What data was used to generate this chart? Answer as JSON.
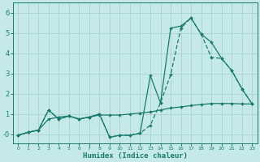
{
  "xlabel": "Humidex (Indice chaleur)",
  "background_color": "#c5e8e8",
  "grid_color": "#afd4d4",
  "line_color": "#1a7a6e",
  "xlim": [
    -0.5,
    23.5
  ],
  "ylim": [
    -0.45,
    6.5
  ],
  "xticks": [
    0,
    1,
    2,
    3,
    4,
    5,
    6,
    7,
    8,
    9,
    10,
    11,
    12,
    13,
    14,
    15,
    16,
    17,
    18,
    19,
    20,
    21,
    22,
    23
  ],
  "yticks": [
    0,
    1,
    2,
    3,
    4,
    5,
    6
  ],
  "ytick_labels": [
    "-0",
    "1",
    "2",
    "3",
    "4",
    "5",
    "6"
  ],
  "series1_x": [
    0,
    1,
    2,
    3,
    4,
    5,
    6,
    7,
    8,
    9,
    10,
    11,
    12,
    13,
    14,
    15,
    16,
    17,
    18,
    19,
    20,
    21,
    22,
    23
  ],
  "series1_y": [
    -0.05,
    0.1,
    0.2,
    0.75,
    0.85,
    0.9,
    0.75,
    0.85,
    0.95,
    0.95,
    0.95,
    1.0,
    1.05,
    1.1,
    1.2,
    1.3,
    1.35,
    1.42,
    1.47,
    1.52,
    1.52,
    1.52,
    1.5,
    1.5
  ],
  "series2_x": [
    0,
    1,
    2,
    3,
    4,
    5,
    6,
    7,
    8,
    9,
    10,
    11,
    12,
    13,
    14,
    15,
    16,
    17,
    18,
    19,
    20,
    21,
    22,
    23
  ],
  "series2_y": [
    -0.05,
    0.1,
    0.2,
    1.2,
    0.75,
    0.9,
    0.75,
    0.85,
    1.0,
    -0.15,
    -0.05,
    -0.05,
    0.05,
    0.45,
    1.55,
    2.95,
    5.25,
    5.75,
    4.95,
    3.8,
    3.75,
    3.15,
    2.25,
    1.5
  ],
  "series3_x": [
    0,
    1,
    2,
    3,
    4,
    5,
    6,
    7,
    8,
    9,
    10,
    11,
    12,
    13,
    14,
    15,
    16,
    17,
    18,
    19,
    20,
    21,
    22,
    23
  ],
  "series3_y": [
    -0.05,
    0.1,
    0.2,
    1.2,
    0.75,
    0.9,
    0.75,
    0.85,
    1.0,
    -0.15,
    -0.05,
    -0.05,
    0.05,
    2.9,
    1.55,
    5.25,
    5.35,
    5.75,
    4.95,
    4.55,
    3.75,
    3.15,
    2.25,
    1.5
  ]
}
